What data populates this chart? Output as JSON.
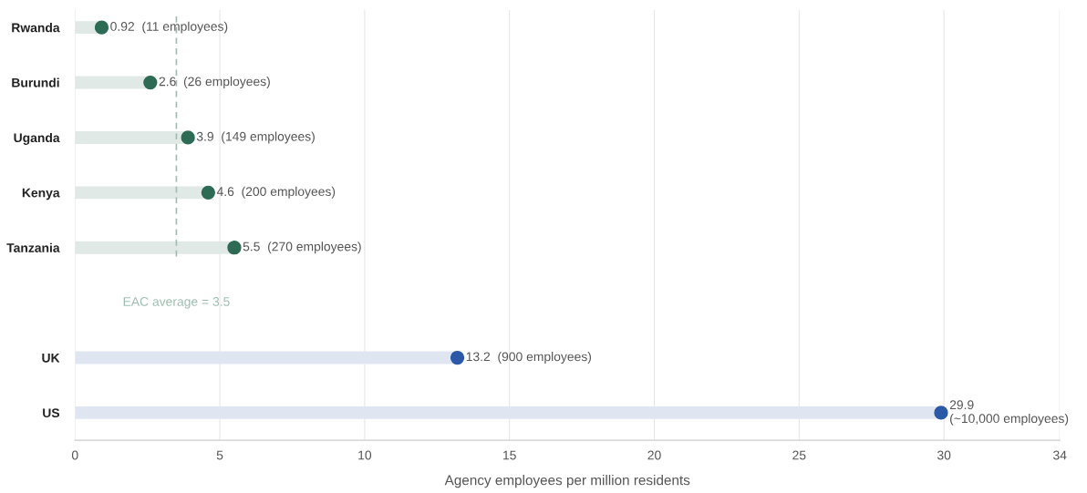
{
  "chart_data": {
    "type": "lollipop",
    "orientation": "horizontal",
    "xlabel": "Agency employees per million residents",
    "categories": [
      "Rwanda",
      "Burundi",
      "Uganda",
      "Kenya",
      "Tanzania",
      null,
      "UK",
      "US"
    ],
    "values": [
      0.92,
      2.6,
      3.9,
      4.6,
      5.5,
      null,
      13.2,
      29.9
    ],
    "colors": [
      "#2e6b55",
      "#2e6b55",
      "#2e6b55",
      "#2e6b55",
      "#2e6b55",
      null,
      "#2b59a8",
      "#2b59a8"
    ],
    "value_labels": [
      "0.92  (11 employees)",
      "2.6  (26 employees)",
      "3.9  (149 employees)",
      "4.6  (200 employees)",
      "5.5  (270 employees)",
      null,
      "13.2  (900 employees)",
      "29.9\n(~10,000 employees)"
    ],
    "xlim": [
      0,
      34
    ],
    "xticks": [
      0,
      5,
      10,
      15,
      20,
      25,
      30,
      34
    ],
    "ref_lines": [
      {
        "axis": "x",
        "value": 3.5,
        "label": "EAC average = 3.5",
        "color": "#9dbdb0",
        "line_style": "dashed"
      }
    ],
    "grid": "x",
    "marker": "circle"
  }
}
